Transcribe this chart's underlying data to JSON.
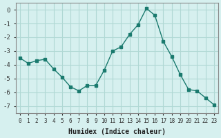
{
  "x": [
    0,
    1,
    2,
    3,
    4,
    5,
    6,
    7,
    8,
    9,
    10,
    11,
    12,
    13,
    14,
    15,
    16,
    17,
    18,
    19,
    20,
    21,
    22,
    23
  ],
  "y": [
    -3.5,
    -3.9,
    -3.7,
    -3.6,
    -4.3,
    -4.9,
    -5.6,
    -5.9,
    -5.5,
    -5.5,
    -4.4,
    -3.0,
    -2.7,
    -1.8,
    -1.1,
    0.1,
    -0.4,
    -2.3,
    -3.4,
    -4.7,
    -5.8,
    -5.9,
    -6.4,
    -6.9
  ],
  "line_color": "#1a7a6e",
  "marker": "s",
  "marker_size": 3,
  "bg_color": "#d6f0ef",
  "grid_color": "#b0d8d4",
  "axis_color": "#555555",
  "xlabel": "Humidex (Indice chaleur)",
  "ylabel": "",
  "ylim": [
    -7.5,
    0.5
  ],
  "xlim": [
    -0.5,
    23.5
  ],
  "yticks": [
    0,
    -1,
    -2,
    -3,
    -4,
    -5,
    -6,
    -7
  ],
  "xticks": [
    0,
    1,
    2,
    3,
    4,
    5,
    6,
    7,
    8,
    9,
    10,
    11,
    12,
    13,
    14,
    15,
    16,
    17,
    18,
    19,
    20,
    21,
    22,
    23
  ]
}
